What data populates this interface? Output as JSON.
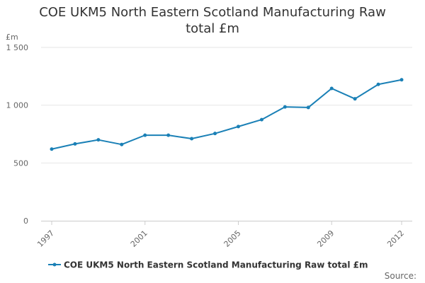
{
  "chart_data": {
    "type": "line",
    "title": "COE UKM5 North Eastern Scotland Manufacturing Raw total £m",
    "ylabel": "£m",
    "xlabel": "",
    "ylim": [
      0,
      1500
    ],
    "xlim": [
      1997,
      2012
    ],
    "y_ticks": [
      0,
      500,
      1000,
      1500
    ],
    "y_tick_labels": [
      "0",
      "500",
      "1 000",
      "1 500"
    ],
    "x_tick_labels": [
      "1997",
      "2001",
      "2005",
      "2009",
      "2012"
    ],
    "x_tick_values": [
      1997,
      2001,
      2005,
      2009,
      2012
    ],
    "grid": true,
    "legend_position": "bottom",
    "series": [
      {
        "name": "COE UKM5 North Eastern Scotland Manufacturing Raw total £m",
        "color": "#1a80b6",
        "x": [
          1997,
          1998,
          1999,
          2000,
          2001,
          2002,
          2003,
          2004,
          2005,
          2006,
          2007,
          2008,
          2009,
          2010,
          2011,
          2012
        ],
        "values": [
          620,
          665,
          700,
          660,
          740,
          740,
          710,
          755,
          815,
          875,
          985,
          980,
          1145,
          1055,
          1180,
          1220
        ]
      }
    ]
  },
  "source_label": "Source:"
}
